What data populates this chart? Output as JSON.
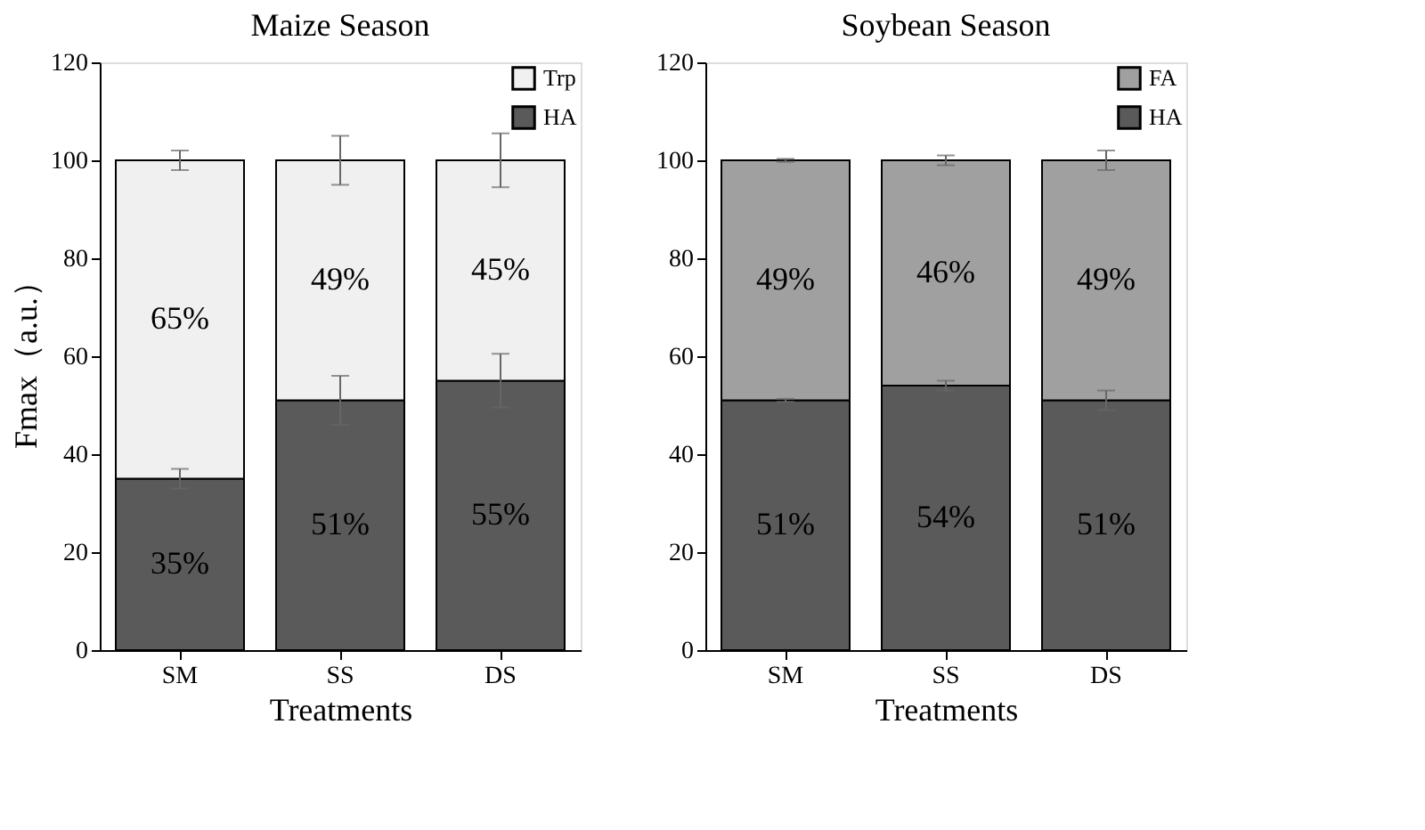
{
  "chart_data": [
    {
      "type": "bar",
      "title": "Maize Season",
      "xlabel": "Treatments",
      "ylabel": "Fmax（a.u.）",
      "categories": [
        "SM",
        "SS",
        "DS"
      ],
      "stacked": true,
      "ylim": [
        0,
        120
      ],
      "yticks": [
        0,
        20,
        40,
        60,
        80,
        100,
        120
      ],
      "grid": false,
      "legend": "top right",
      "series": [
        {
          "name": "HA",
          "color": "#5a5a5a",
          "values": [
            35,
            51,
            55
          ],
          "errors": [
            2,
            5,
            5.5
          ],
          "value_labels": [
            "35%",
            "51%",
            "55%"
          ]
        },
        {
          "name": "Trp",
          "color": "#f0f0f0",
          "values": [
            65,
            49,
            45
          ],
          "errors": [
            2,
            5,
            5.5
          ],
          "value_labels": [
            "65%",
            "49%",
            "45%"
          ]
        }
      ]
    },
    {
      "type": "bar",
      "title": "Soybean Season",
      "xlabel": "Treatments",
      "categories": [
        "SM",
        "SS",
        "DS"
      ],
      "stacked": true,
      "ylim": [
        0,
        120
      ],
      "yticks": [
        0,
        20,
        40,
        60,
        80,
        100,
        120
      ],
      "grid": false,
      "legend": "top right",
      "series": [
        {
          "name": "HA",
          "color": "#5a5a5a",
          "values": [
            51,
            54,
            51
          ],
          "errors": [
            0.3,
            1,
            2
          ],
          "value_labels": [
            "51%",
            "54%",
            "51%"
          ]
        },
        {
          "name": "FA",
          "color": "#a0a0a0",
          "values": [
            49,
            46,
            49
          ],
          "errors": [
            0.3,
            1,
            2
          ],
          "value_labels": [
            "49%",
            "46%",
            "49%"
          ]
        }
      ]
    }
  ]
}
